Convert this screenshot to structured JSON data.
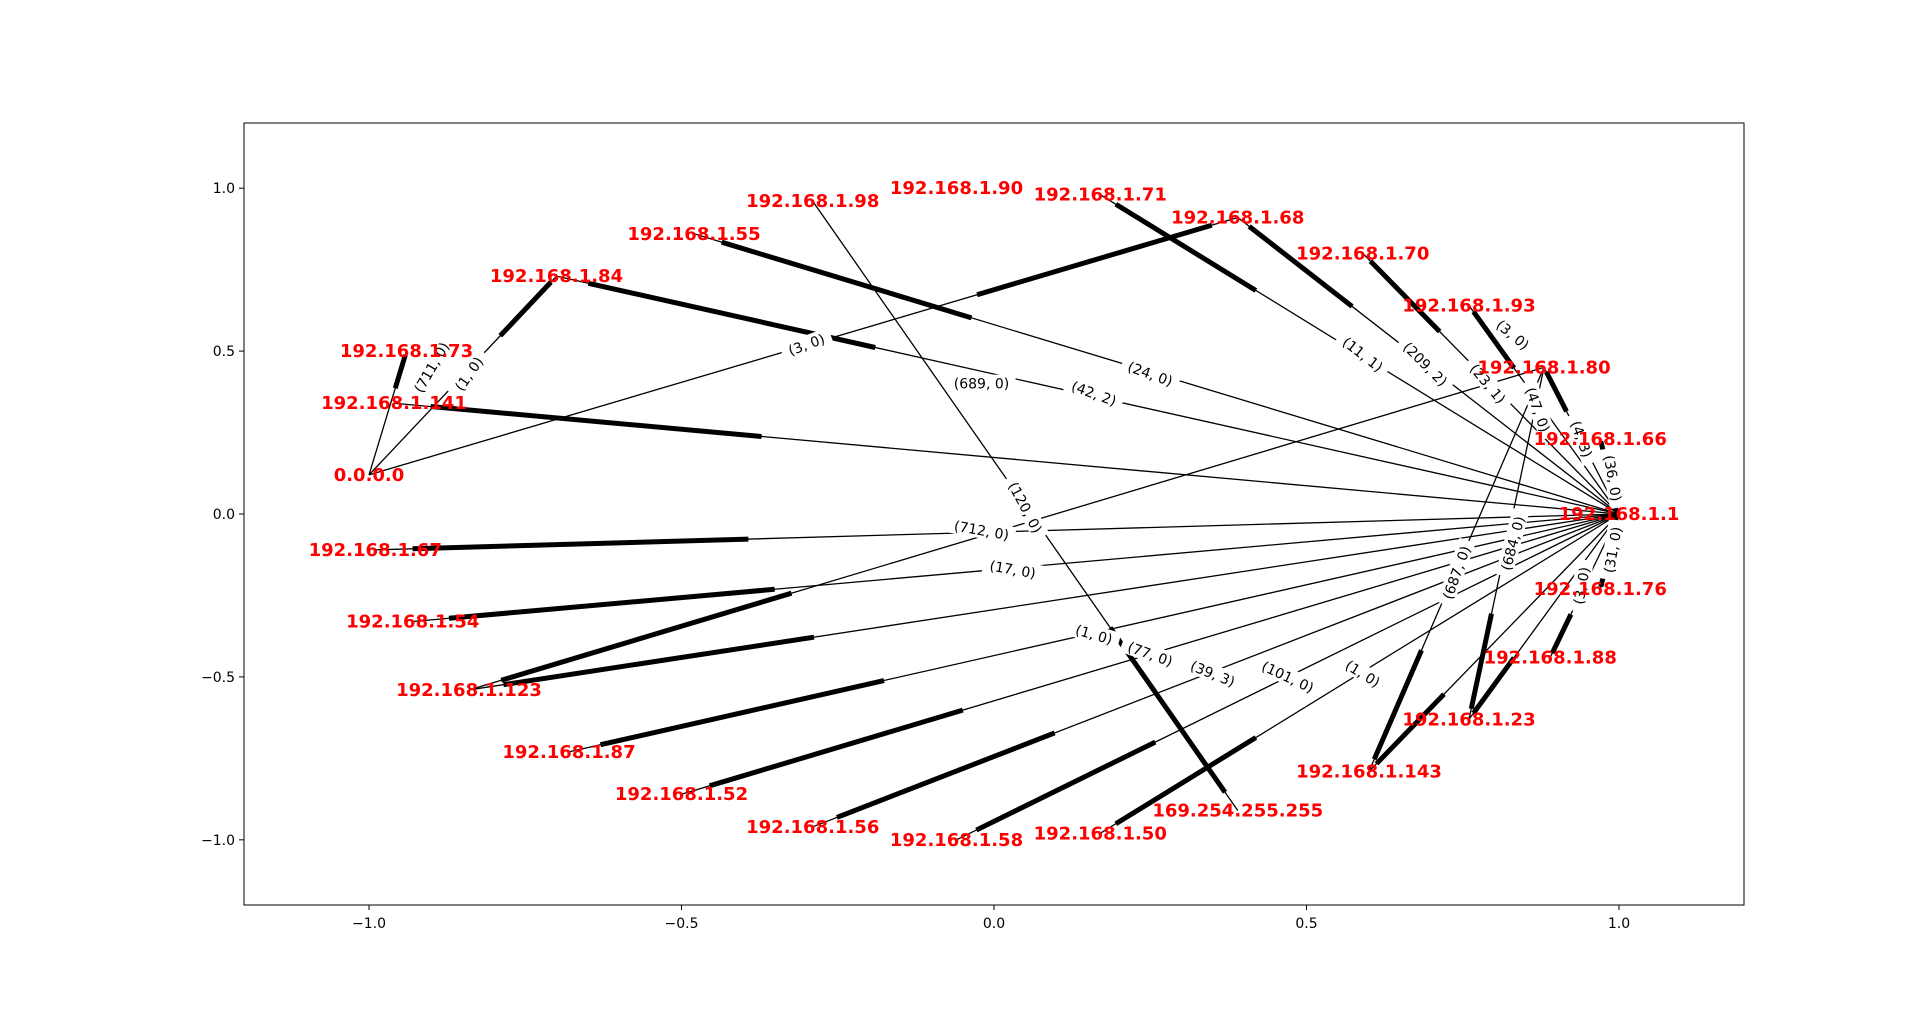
{
  "chart_data": {
    "type": "network",
    "title": "",
    "xlabel": "",
    "ylabel": "",
    "xlim": [
      -1.2,
      1.2
    ],
    "ylim": [
      -1.2,
      1.2
    ],
    "grid": false,
    "x_ticks": [
      "−1.0",
      "−0.5",
      "0.0",
      "0.5",
      "1.0"
    ],
    "y_ticks": [
      "−1.0",
      "−0.5",
      "0.0",
      "0.5",
      "1.0"
    ],
    "x_tick_values": [
      -1.0,
      -0.5,
      0.0,
      0.5,
      1.0
    ],
    "y_tick_values": [
      -1.0,
      -0.5,
      0.0,
      0.5,
      1.0
    ],
    "colors": {
      "node_label": "#ff0000",
      "edge": "#000000",
      "frame": "#000000"
    },
    "nodes": [
      {
        "id": "192.168.1.1",
        "x": 1.0,
        "y": 0.0
      },
      {
        "id": "0.0.0.0",
        "x": -1.0,
        "y": 0.12
      },
      {
        "id": "192.168.1.73",
        "x": -0.94,
        "y": 0.5
      },
      {
        "id": "192.168.1.84",
        "x": -0.7,
        "y": 0.73
      },
      {
        "id": "192.168.1.141",
        "x": -0.96,
        "y": 0.34
      },
      {
        "id": "192.168.1.55",
        "x": -0.48,
        "y": 0.86
      },
      {
        "id": "192.168.1.98",
        "x": -0.29,
        "y": 0.96
      },
      {
        "id": "192.168.1.90",
        "x": -0.06,
        "y": 1.0
      },
      {
        "id": "192.168.1.71",
        "x": 0.17,
        "y": 0.98
      },
      {
        "id": "192.168.1.68",
        "x": 0.39,
        "y": 0.91
      },
      {
        "id": "192.168.1.70",
        "x": 0.59,
        "y": 0.8
      },
      {
        "id": "192.168.1.93",
        "x": 0.76,
        "y": 0.64
      },
      {
        "id": "192.168.1.80",
        "x": 0.88,
        "y": 0.45
      },
      {
        "id": "192.168.1.66",
        "x": 0.97,
        "y": 0.23
      },
      {
        "id": "192.168.1.76",
        "x": 0.97,
        "y": -0.23
      },
      {
        "id": "192.168.1.88",
        "x": 0.89,
        "y": -0.44
      },
      {
        "id": "192.168.1.23",
        "x": 0.76,
        "y": -0.63
      },
      {
        "id": "192.168.1.143",
        "x": 0.6,
        "y": -0.79
      },
      {
        "id": "169.254.255.255",
        "x": 0.39,
        "y": -0.91
      },
      {
        "id": "192.168.1.50",
        "x": 0.17,
        "y": -0.98
      },
      {
        "id": "192.168.1.58",
        "x": -0.06,
        "y": -1.0
      },
      {
        "id": "192.168.1.56",
        "x": -0.29,
        "y": -0.96
      },
      {
        "id": "192.168.1.52",
        "x": -0.5,
        "y": -0.86
      },
      {
        "id": "192.168.1.87",
        "x": -0.68,
        "y": -0.73
      },
      {
        "id": "192.168.1.123",
        "x": -0.84,
        "y": -0.54
      },
      {
        "id": "192.168.1.54",
        "x": -0.93,
        "y": -0.33
      },
      {
        "id": "192.168.1.67",
        "x": -0.99,
        "y": -0.11
      }
    ],
    "edges": [
      {
        "source": "192.168.1.1",
        "target": "192.168.1.67",
        "label": "(712, 0)",
        "lx": -0.02,
        "ly": -0.05,
        "angle": 10
      },
      {
        "source": "192.168.1.1",
        "target": "192.168.1.54",
        "label": "(17, 0)",
        "lx": 0.03,
        "ly": -0.17,
        "angle": 10
      },
      {
        "source": "192.168.1.1",
        "target": "192.168.1.87",
        "label": "(1, 0)",
        "lx": 0.16,
        "ly": -0.37,
        "angle": 16
      },
      {
        "source": "192.168.1.1",
        "target": "192.168.1.52",
        "label": "(77, 0)",
        "lx": 0.25,
        "ly": -0.43,
        "angle": 20
      },
      {
        "source": "192.168.1.1",
        "target": "192.168.1.56",
        "label": "(39, 3)",
        "lx": 0.35,
        "ly": -0.49,
        "angle": 22
      },
      {
        "source": "192.168.1.1",
        "target": "192.168.1.58",
        "label": "(101, 0)",
        "lx": 0.47,
        "ly": -0.5,
        "angle": 25
      },
      {
        "source": "192.168.1.1",
        "target": "192.168.1.50",
        "label": "(1, 0)",
        "lx": 0.59,
        "ly": -0.49,
        "angle": 32
      },
      {
        "source": "192.168.1.1",
        "target": "192.168.1.123",
        "label": "(684, 0)",
        "lx": 0.83,
        "ly": -0.09,
        "angle": -75
      },
      {
        "source": "192.168.1.1",
        "target": "192.168.1.141",
        "label": "(689, 0)",
        "lx": -0.02,
        "ly": 0.4,
        "angle": 0
      },
      {
        "source": "192.168.1.1",
        "target": "192.168.1.84",
        "label": "(42, 2)",
        "lx": 0.16,
        "ly": 0.37,
        "angle": 20
      },
      {
        "source": "192.168.1.1",
        "target": "192.168.1.55",
        "label": "(24, 0)",
        "lx": 0.25,
        "ly": 0.43,
        "angle": 20
      },
      {
        "source": "192.168.1.1",
        "target": "192.168.1.71",
        "label": "(11, 1)",
        "lx": 0.59,
        "ly": 0.49,
        "angle": 38
      },
      {
        "source": "192.168.1.1",
        "target": "192.168.1.68",
        "label": "(209, 2)",
        "lx": 0.69,
        "ly": 0.46,
        "angle": 45
      },
      {
        "source": "192.168.1.1",
        "target": "192.168.1.70",
        "label": "(23, 1)",
        "lx": 0.79,
        "ly": 0.4,
        "angle": 50
      },
      {
        "source": "192.168.1.1",
        "target": "192.168.1.93",
        "label": "(3, 0)",
        "lx": 0.83,
        "ly": 0.55,
        "angle": 40
      },
      {
        "source": "192.168.1.1",
        "target": "192.168.1.66",
        "label": "(36, 0)",
        "lx": 0.99,
        "ly": 0.11,
        "angle": 80
      },
      {
        "source": "192.168.1.1",
        "target": "192.168.1.76",
        "label": "(31, 0)",
        "lx": 0.99,
        "ly": -0.11,
        "angle": -80
      },
      {
        "source": "192.168.1.1",
        "target": "192.168.1.88",
        "label": "(3, 0)",
        "lx": 0.94,
        "ly": -0.22,
        "angle": -80
      },
      {
        "source": "192.168.1.1",
        "target": "192.168.1.23",
        "label": "",
        "lx": 0,
        "ly": 0,
        "angle": 0
      },
      {
        "source": "192.168.1.1",
        "target": "192.168.1.143",
        "label": "",
        "lx": 0,
        "ly": 0,
        "angle": 0
      },
      {
        "source": "192.168.1.1",
        "target": "192.168.1.80",
        "label": "(4, 3)",
        "lx": 0.94,
        "ly": 0.23,
        "angle": 70
      },
      {
        "source": "192.168.1.98",
        "target": "169.254.255.255",
        "label": "(120, 0)",
        "lx": 0.05,
        "ly": 0.02,
        "angle": 62
      },
      {
        "source": "0.0.0.0",
        "target": "192.168.1.68",
        "label": "(3, 0)",
        "lx": -0.3,
        "ly": 0.52,
        "angle": -20
      },
      {
        "source": "0.0.0.0",
        "target": "192.168.1.84",
        "label": "(1, 0)",
        "lx": -0.84,
        "ly": 0.43,
        "angle": -55
      },
      {
        "source": "0.0.0.0",
        "target": "192.168.1.73",
        "label": "(711, 0)",
        "lx": -0.9,
        "ly": 0.45,
        "angle": -60
      },
      {
        "source": "192.168.1.80",
        "target": "192.168.1.123",
        "label": "",
        "lx": 0,
        "ly": 0,
        "angle": 0
      },
      {
        "source": "192.168.1.80",
        "target": "192.168.1.143",
        "label": "(687, 0)",
        "lx": 0.74,
        "ly": -0.18,
        "angle": -70
      },
      {
        "source": "192.168.1.80",
        "target": "192.168.1.23",
        "label": "(47, 0)",
        "lx": 0.87,
        "ly": 0.32,
        "angle": 70
      }
    ]
  }
}
